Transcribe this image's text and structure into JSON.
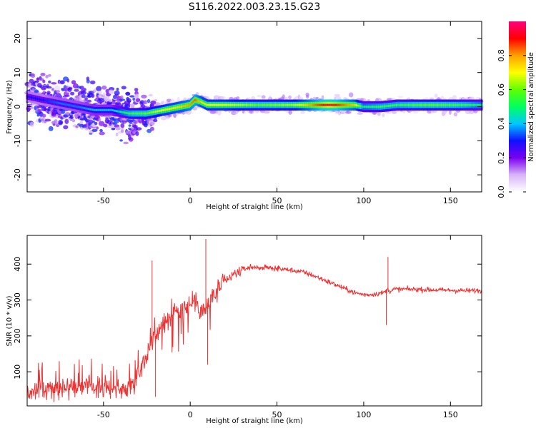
{
  "figure_title": "S116.2022.003.23.15.G23",
  "chart_data": [
    {
      "type": "heatmap",
      "xlabel": "Height of straight line (km)",
      "ylabel": "Frequency (Hz)",
      "xlim": [
        -94,
        168
      ],
      "ylim": [
        -25,
        25
      ],
      "x_ticks": [
        -50,
        0,
        50,
        100,
        150
      ],
      "y_ticks": [
        -20,
        -10,
        0,
        10,
        20
      ],
      "colorbar": {
        "label": "Normalized spectral amplitude",
        "range": [
          0.0,
          1.0
        ],
        "ticks": [
          "0.0",
          "0.2",
          "0.4",
          "0.6",
          "0.8"
        ],
        "colormap": [
          "#ffffff",
          "#d8b4f8",
          "#7a00f0",
          "#1010ff",
          "#00c8ff",
          "#00ff60",
          "#60ff00",
          "#ffff00",
          "#ffa000",
          "#ff0000",
          "#ff0080"
        ]
      },
      "ridge": {
        "x": [
          -94,
          -85,
          -75,
          -65,
          -55,
          -45,
          -35,
          -25,
          -15,
          -5,
          0,
          3,
          6,
          10,
          20,
          40,
          60,
          80,
          95,
          100,
          110,
          120,
          140,
          160,
          168
        ],
        "freq": [
          3,
          2,
          1,
          0,
          -1,
          -1,
          -2,
          -2,
          -1,
          0,
          0.5,
          2,
          1.5,
          0.5,
          0.5,
          0.5,
          0.5,
          0.5,
          0.5,
          0,
          0,
          0.5,
          0.5,
          0.5,
          0.5
        ],
        "amplitude": [
          0.3,
          0.3,
          0.35,
          0.35,
          0.4,
          0.4,
          0.55,
          0.6,
          0.7,
          0.75,
          0.8,
          0.85,
          0.75,
          0.7,
          0.7,
          0.6,
          0.65,
          0.95,
          0.75,
          0.5,
          0.55,
          0.55,
          0.6,
          0.55,
          0.5
        ]
      }
    },
    {
      "type": "line",
      "xlabel": "Height of straight line (km)",
      "ylabel": "SNR (10 * v/v)",
      "xlim": [
        -94,
        168
      ],
      "ylim": [
        5,
        480
      ],
      "x_ticks": [
        -50,
        0,
        50,
        100,
        150
      ],
      "y_ticks": [
        100,
        200,
        300,
        400
      ],
      "series": [
        {
          "color": "#ee3333",
          "x": [
            -94,
            -85,
            -75,
            -65,
            -55,
            -45,
            -38,
            -32,
            -28,
            -24,
            -22,
            -20,
            -17,
            -13,
            -8,
            -4,
            0,
            3,
            6,
            9,
            12,
            16,
            20,
            25,
            30,
            35,
            40,
            45,
            50,
            55,
            60,
            65,
            70,
            75,
            80,
            85,
            90,
            95,
            100,
            104,
            108,
            111,
            113,
            114,
            115,
            118,
            120,
            125,
            130,
            140,
            150,
            160,
            168
          ],
          "y": [
            40,
            50,
            55,
            60,
            60,
            55,
            50,
            70,
            120,
            160,
            180,
            200,
            230,
            250,
            270,
            280,
            290,
            300,
            280,
            270,
            300,
            330,
            350,
            370,
            385,
            392,
            390,
            390,
            388,
            385,
            382,
            378,
            370,
            360,
            350,
            340,
            330,
            320,
            315,
            315,
            318,
            320,
            325,
            330,
            325,
            330,
            330,
            330,
            330,
            328,
            327,
            326,
            326
          ],
          "spikes": [
            {
              "x": -22,
              "y": 410
            },
            {
              "x": -20,
              "y": 30
            },
            {
              "x": 9,
              "y": 470
            },
            {
              "x": 10,
              "y": 120
            },
            {
              "x": 114,
              "y": 420
            },
            {
              "x": 113,
              "y": 230
            }
          ]
        }
      ]
    }
  ]
}
